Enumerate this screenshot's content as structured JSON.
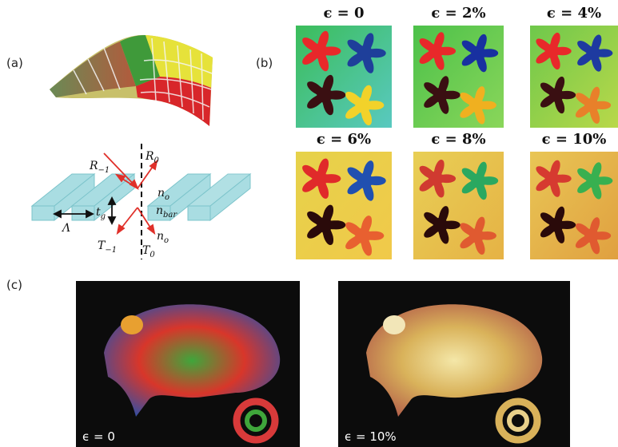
{
  "labels": {
    "a": "(a)",
    "b": "(b)",
    "c": "(c)"
  },
  "diagram_labels": [
    {
      "symbol": "R",
      "subscript": "−1"
    },
    {
      "symbol": "R",
      "subscript": "0"
    },
    {
      "symbol": "n",
      "subscript": "o"
    },
    {
      "symbol": "t",
      "subscript": "g"
    },
    {
      "symbol": "Λ"
    },
    {
      "symbol": "n",
      "subscript": "bar"
    },
    {
      "symbol": "T",
      "subscript": "−1"
    },
    {
      "symbol": "n",
      "subscript": "o"
    },
    {
      "symbol": "T",
      "subscript": "0"
    }
  ],
  "strain_panels": [
    {
      "title": "ϵ = 0"
    },
    {
      "title": "ϵ = 2%"
    },
    {
      "title": "ϵ = 4%"
    },
    {
      "title": "ϵ = 6%"
    },
    {
      "title": "ϵ = 8%"
    },
    {
      "title": "ϵ = 10%"
    }
  ],
  "photos": [
    {
      "caption": "ϵ = 0"
    },
    {
      "caption": "ϵ = 10%"
    }
  ]
}
